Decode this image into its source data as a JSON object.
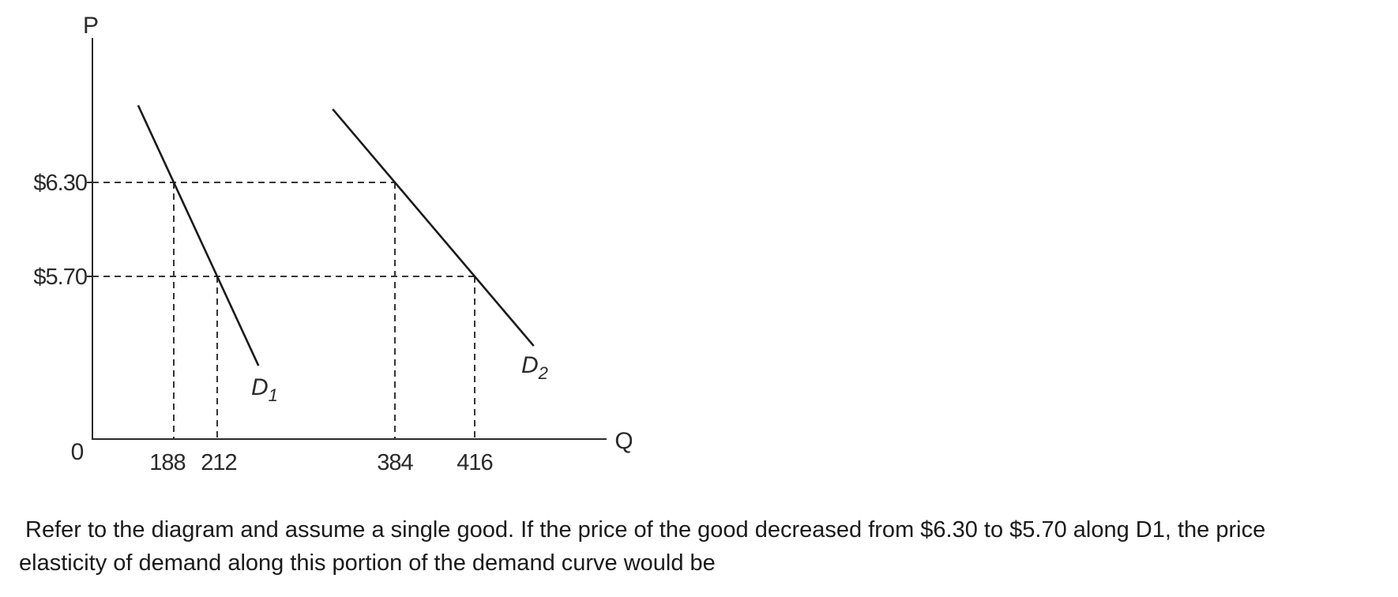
{
  "chart_data": {
    "type": "line",
    "xlabel": "Q",
    "ylabel": "P",
    "origin_label": "0",
    "series": [
      {
        "name": "D1",
        "label_main": "D",
        "label_sub": "1",
        "points": [
          {
            "x": 188,
            "y": 6.3
          },
          {
            "x": 212,
            "y": 5.7
          }
        ]
      },
      {
        "name": "D2",
        "label_main": "D",
        "label_sub": "2",
        "points": [
          {
            "x": 384,
            "y": 6.3
          },
          {
            "x": 416,
            "y": 5.7
          }
        ]
      }
    ],
    "y_ticks": [
      {
        "value": 6.3,
        "label": "$6.30"
      },
      {
        "value": 5.7,
        "label": "$5.70"
      }
    ],
    "x_ticks": [
      {
        "value": 188,
        "label": "188"
      },
      {
        "value": 212,
        "label": "212"
      },
      {
        "value": 384,
        "label": "384"
      },
      {
        "value": 416,
        "label": "416"
      }
    ],
    "grid": false,
    "legend": "none"
  },
  "question": {
    "line1": "Refer to the diagram and assume a single good. If the price of the good decreased from $6.30 to $5.70 along D1, the price",
    "line2": "elasticity of demand along this portion of the demand curve would be"
  }
}
